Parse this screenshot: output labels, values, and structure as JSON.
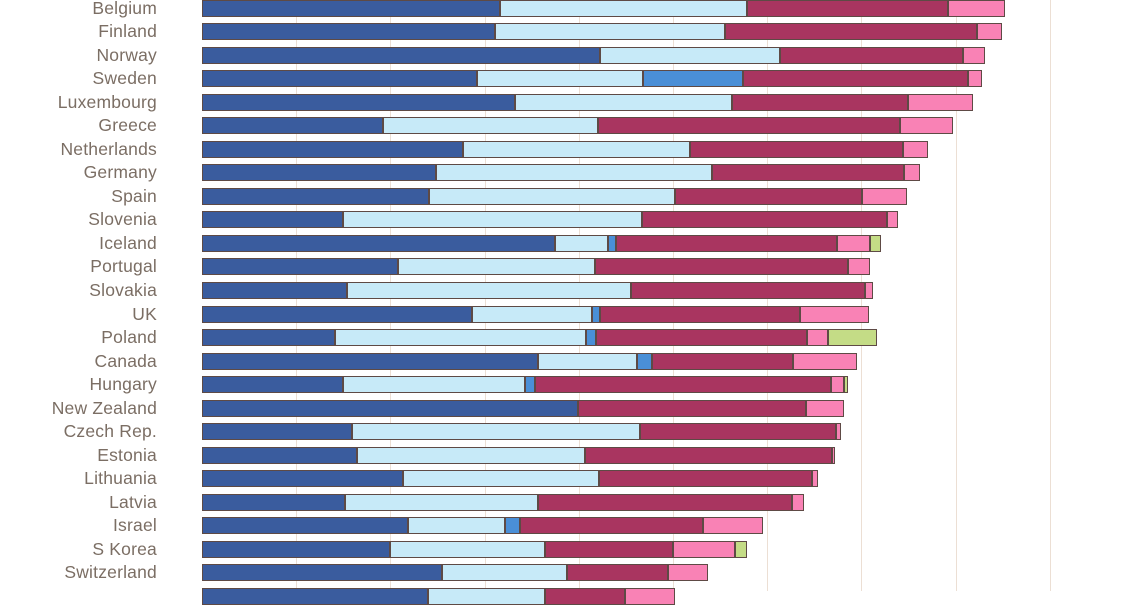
{
  "chart_data": {
    "type": "bar",
    "orientation": "horizontal",
    "stacked": true,
    "title": "",
    "xlabel": "",
    "ylabel": "",
    "axis": {
      "x_min": 0,
      "x_max": 49.2,
      "gridline_interval": 5,
      "gridlines_on": true,
      "tick_labels_visible": false
    },
    "legend": {
      "visible": false
    },
    "note": "chart cropped: no title, legend or axis labels visible; bottom row bar visible but its label is cut off",
    "series_keys": [
      "navy",
      "light_blue",
      "medium_blue",
      "crimson",
      "pink",
      "green"
    ],
    "series_colors": {
      "navy": "#3a5c9e",
      "light_blue": "#c7eaf8",
      "medium_blue": "#4a8fd7",
      "crimson": "#a93560",
      "pink": "#f982b5",
      "green": "#c4dc86"
    },
    "categories": [
      "Belgium",
      "Finland",
      "Norway",
      "Sweden",
      "Luxembourg",
      "Greece",
      "Netherlands",
      "Germany",
      "Spain",
      "Slovenia",
      "Iceland",
      "Portugal",
      "Slovakia",
      "UK",
      "Poland",
      "Canada",
      "Hungary",
      "New Zealand",
      "Czech Rep.",
      "Estonia",
      "Lithuania",
      "Latvia",
      "Israel",
      "S Korea",
      "Switzerland",
      ""
    ],
    "rows": [
      {
        "label": "Belgium",
        "values": [
          15.82,
          13.11,
          0,
          10.67,
          3.03,
          0
        ]
      },
      {
        "label": "Finland",
        "values": [
          15.55,
          12.21,
          0,
          13.38,
          1.33,
          0
        ]
      },
      {
        "label": "Norway",
        "values": [
          21.13,
          9.55,
          0,
          9.71,
          1.17,
          0
        ]
      },
      {
        "label": "Sweden",
        "values": [
          14.6,
          8.81,
          5.31,
          11.94,
          0.74,
          0
        ]
      },
      {
        "label": "Luxembourg",
        "values": [
          16.61,
          11.52,
          0,
          9.34,
          3.45,
          0
        ]
      },
      {
        "label": "Greece",
        "values": [
          9.61,
          11.41,
          0,
          16.03,
          2.81,
          0
        ]
      },
      {
        "label": "Netherlands",
        "values": [
          13.85,
          12.05,
          0,
          11.31,
          1.33,
          0
        ]
      },
      {
        "label": "Germany",
        "values": [
          12.42,
          14.65,
          0,
          10.19,
          0.85,
          0
        ]
      },
      {
        "label": "Spain",
        "values": [
          12.05,
          13.06,
          0,
          9.93,
          2.39,
          0
        ]
      },
      {
        "label": "Slovenia",
        "values": [
          7.48,
          15.87,
          0,
          13.0,
          0.58,
          0
        ]
      },
      {
        "label": "Iceland",
        "values": [
          18.74,
          2.81,
          0.42,
          11.73,
          1.75,
          0.58
        ]
      },
      {
        "label": "Portugal",
        "values": [
          10.4,
          10.46,
          0,
          13.43,
          1.17,
          0
        ]
      },
      {
        "label": "Slovakia",
        "values": [
          7.7,
          15.07,
          0,
          12.42,
          0.42,
          0
        ]
      },
      {
        "label": "UK",
        "values": [
          14.33,
          6.37,
          0.42,
          10.62,
          3.66,
          0
        ]
      },
      {
        "label": "Poland",
        "values": [
          7.06,
          13.32,
          0.53,
          11.2,
          1.11,
          2.6
        ]
      },
      {
        "label": "Canada",
        "values": [
          17.83,
          5.25,
          0.8,
          7.48,
          3.4,
          0
        ]
      },
      {
        "label": "Hungary",
        "values": [
          7.48,
          9.66,
          0.53,
          15.71,
          0.69,
          0.21
        ]
      },
      {
        "label": "New Zealand",
        "values": [
          19.96,
          0,
          0,
          12.1,
          2.02,
          0
        ]
      },
      {
        "label": "Czech Rep.",
        "values": [
          7.96,
          15.29,
          0,
          10.4,
          0.27,
          0
        ]
      },
      {
        "label": "Estonia",
        "values": [
          8.23,
          12.1,
          0,
          13.11,
          0.16,
          0
        ]
      },
      {
        "label": "Lithuania",
        "values": [
          10.67,
          10.4,
          0,
          11.31,
          0.32,
          0
        ]
      },
      {
        "label": "Latvia",
        "values": [
          7.59,
          10.24,
          0,
          13.48,
          0.64,
          0
        ]
      },
      {
        "label": "Israel",
        "values": [
          10.93,
          5.15,
          0.8,
          9.71,
          3.18,
          0
        ]
      },
      {
        "label": "S Korea",
        "values": [
          9.98,
          8.23,
          0,
          6.79,
          3.29,
          0.64
        ]
      },
      {
        "label": "Switzerland",
        "values": [
          12.74,
          6.63,
          0,
          5.36,
          2.12,
          0
        ]
      },
      {
        "label": "",
        "values": [
          12.0,
          6.21,
          0,
          4.25,
          2.65,
          0
        ]
      }
    ]
  },
  "colors": {
    "background": "#ffffff",
    "gridline": "#ecdfd4",
    "segment_border": "#5e4a45",
    "label_text": "#7b6e64"
  }
}
